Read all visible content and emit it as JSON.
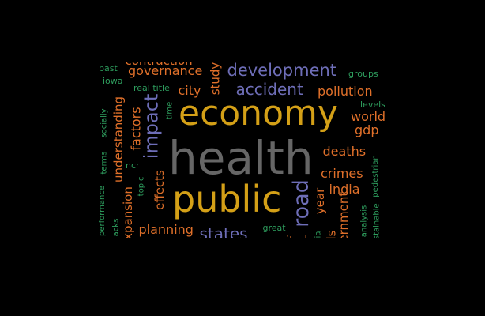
{
  "colors": {
    "background": "#000000",
    "gray": "#666666",
    "gold": "#D4A017",
    "orange": "#E0702A",
    "purple": "#6E6EB8",
    "green": "#2E9E5E"
  },
  "words": [
    {
      "id": "health",
      "text": "health",
      "color": "#666666"
    },
    {
      "id": "economy",
      "text": "economy",
      "color": "#D4A017"
    },
    {
      "id": "public",
      "text": "public",
      "color": "#D4A017"
    },
    {
      "id": "road",
      "text": "road",
      "color": "#6E6EB8"
    },
    {
      "id": "development",
      "text": "development",
      "color": "#6E6EB8"
    },
    {
      "id": "impact",
      "text": "impact",
      "color": "#6E6EB8"
    },
    {
      "id": "accident",
      "text": "accident",
      "color": "#6E6EB8"
    },
    {
      "id": "states",
      "text": "states",
      "color": "#6E6EB8"
    },
    {
      "id": "governance",
      "text": "governance",
      "color": "#E0702A"
    },
    {
      "id": "contraction",
      "text": "contraction",
      "color": "#E0702A"
    },
    {
      "id": "pollution",
      "text": "pollution",
      "color": "#E0702A"
    },
    {
      "id": "city",
      "text": "city",
      "color": "#E0702A"
    },
    {
      "id": "study",
      "text": "study",
      "color": "#E0702A"
    },
    {
      "id": "world",
      "text": "world",
      "color": "#E0702A"
    },
    {
      "id": "gdp",
      "text": "gdp",
      "color": "#E0702A"
    },
    {
      "id": "deaths",
      "text": "deaths",
      "color": "#E0702A"
    },
    {
      "id": "crimes",
      "text": "crimes",
      "color": "#E0702A"
    },
    {
      "id": "india",
      "text": "india",
      "color": "#E0702A"
    },
    {
      "id": "year",
      "text": "year",
      "color": "#E0702A"
    },
    {
      "id": "planning",
      "text": "planning",
      "color": "#E0702A"
    },
    {
      "id": "factors",
      "text": "factors",
      "color": "#E0702A"
    },
    {
      "id": "understanding",
      "text": "understanding",
      "color": "#E0702A"
    },
    {
      "id": "effects",
      "text": "effects",
      "color": "#E0702A"
    },
    {
      "id": "expansion",
      "text": "expansion",
      "color": "#E0702A"
    },
    {
      "id": "government",
      "text": "government",
      "color": "#E0702A"
    },
    {
      "id": "ls",
      "text": "ls",
      "color": "#E0702A"
    },
    {
      "id": "united",
      "text": "united",
      "color": "#E0702A"
    },
    {
      "id": "past",
      "text": "past",
      "color": "#2E9E5E"
    },
    {
      "id": "iowa",
      "text": "iowa",
      "color": "#2E9E5E"
    },
    {
      "id": "real-title",
      "text": "real title",
      "color": "#2E9E5E"
    },
    {
      "id": "groups",
      "text": "groups",
      "color": "#2E9E5E"
    },
    {
      "id": "c",
      "text": "c",
      "color": "#2E9E5E"
    },
    {
      "id": "levels",
      "text": "levels",
      "color": "#2E9E5E"
    },
    {
      "id": "socially",
      "text": "socially",
      "color": "#2E9E5E"
    },
    {
      "id": "terms",
      "text": "terms",
      "color": "#2E9E5E"
    },
    {
      "id": "time",
      "text": "time",
      "color": "#2E9E5E"
    },
    {
      "id": "ncr",
      "text": "ncr",
      "color": "#2E9E5E"
    },
    {
      "id": "topic",
      "text": "topic",
      "color": "#2E9E5E"
    },
    {
      "id": "performance",
      "text": "performance",
      "color": "#2E9E5E"
    },
    {
      "id": "acks",
      "text": "acks",
      "color": "#2E9E5E"
    },
    {
      "id": "great",
      "text": "great",
      "color": "#2E9E5E"
    },
    {
      "id": "pedestrian",
      "text": "pedestrian",
      "color": "#2E9E5E"
    },
    {
      "id": "analysis",
      "text": "analysis",
      "color": "#2E9E5E"
    },
    {
      "id": "sustainable",
      "text": "sustainable",
      "color": "#2E9E5E"
    },
    {
      "id": "ia",
      "text": "ia",
      "color": "#2E9E5E"
    }
  ]
}
